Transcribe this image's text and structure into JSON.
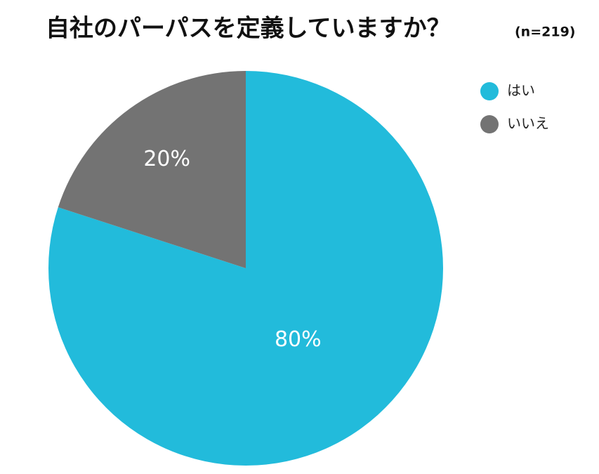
{
  "chart_data": {
    "type": "pie",
    "title": "自社のパーパスを定義していますか？",
    "subtitle": "(n=219)",
    "categories": [
      "はい",
      "いいえ"
    ],
    "values": [
      80,
      20
    ],
    "value_labels": [
      "80%",
      "20%"
    ],
    "colors": [
      "#22bbdb",
      "#737373"
    ],
    "legend": "top-right"
  }
}
